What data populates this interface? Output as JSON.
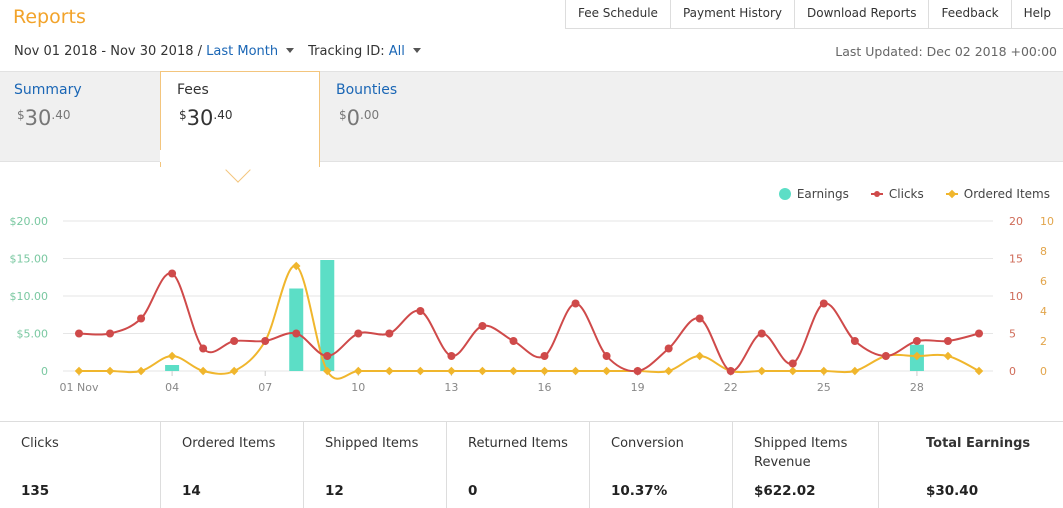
{
  "header": {
    "title": "Reports"
  },
  "topnav": [
    "Fee Schedule",
    "Payment History",
    "Download Reports",
    "Feedback",
    "Help"
  ],
  "filters": {
    "date_range": "Nov 01 2018 - Nov 30 2018 /",
    "period": "Last Month",
    "tracking_label": "Tracking ID:",
    "tracking_value": "All",
    "last_updated": "Last Updated: Dec 02 2018 +00:00"
  },
  "tabs": [
    {
      "label": "Summary",
      "currency": "$",
      "whole": "30",
      "cents": ".40"
    },
    {
      "label": "Fees",
      "currency": "$",
      "whole": "30",
      "cents": ".40"
    },
    {
      "label": "Bounties",
      "currency": "$",
      "whole": "0",
      "cents": ".00"
    }
  ],
  "legend": {
    "earnings": "Earnings",
    "clicks": "Clicks",
    "ordered": "Ordered Items"
  },
  "colors": {
    "accent": "#f2a32a",
    "link": "#1a66b5",
    "earnings": "#5cdec6",
    "clicks": "#cf4a4a",
    "ordered": "#f0b62d"
  },
  "chart_data": {
    "type": "bar+line",
    "x": [
      "01 Nov",
      "02",
      "03",
      "04",
      "05",
      "06",
      "07",
      "08",
      "09",
      "10",
      "11",
      "12",
      "13",
      "14",
      "15",
      "16",
      "17",
      "18",
      "19",
      "20",
      "21",
      "22",
      "23",
      "24",
      "25",
      "26",
      "27",
      "28",
      "29",
      "30"
    ],
    "x_tick_labels": [
      "01 Nov",
      "04",
      "07",
      "10",
      "13",
      "16",
      "19",
      "22",
      "25",
      "28"
    ],
    "left_axis": {
      "ticks": [
        "0",
        "$5.00",
        "$10.00",
        "$15.00",
        "$20.00"
      ],
      "range": [
        0,
        20
      ]
    },
    "right_axis_1": {
      "ticks": [
        "0",
        "5",
        "10",
        "15",
        "20"
      ],
      "range": [
        0,
        20
      ]
    },
    "right_axis_2": {
      "ticks": [
        "0",
        "2",
        "4",
        "6",
        "8",
        "10"
      ],
      "range": [
        0,
        10
      ]
    },
    "series": [
      {
        "name": "Earnings",
        "type": "bar",
        "axis": "left",
        "values": [
          0,
          0,
          0,
          0.8,
          0,
          0,
          0,
          11,
          14.8,
          0,
          0,
          0,
          0,
          0,
          0,
          0,
          0,
          0,
          0,
          0,
          0,
          0,
          0,
          0,
          0,
          0,
          0,
          3.5,
          0,
          0
        ]
      },
      {
        "name": "Clicks",
        "type": "line",
        "axis": "right_1",
        "values": [
          5,
          5,
          7,
          13,
          3,
          4,
          4,
          5,
          2,
          5,
          5,
          8,
          2,
          6,
          4,
          2,
          9,
          2,
          0,
          3,
          7,
          0,
          5,
          1,
          9,
          4,
          2,
          4,
          4,
          5
        ]
      },
      {
        "name": "Ordered Items",
        "type": "line",
        "axis": "right_2",
        "values": [
          0,
          0,
          0,
          1,
          0,
          0,
          2,
          7,
          0,
          0,
          0,
          0,
          0,
          0,
          0,
          0,
          0,
          0,
          0,
          0,
          1,
          0,
          0,
          0,
          0,
          0,
          1,
          1,
          1,
          0
        ]
      }
    ]
  },
  "stats": [
    {
      "label": "Clicks",
      "value": "135"
    },
    {
      "label": "Ordered Items",
      "value": "14"
    },
    {
      "label": "Shipped Items",
      "value": "12"
    },
    {
      "label": "Returned Items",
      "value": "0"
    },
    {
      "label": "Conversion",
      "value": "10.37%"
    },
    {
      "label": "Shipped Items Revenue",
      "value": "$622.02"
    },
    {
      "label": "Total Earnings",
      "value": "$30.40"
    }
  ]
}
